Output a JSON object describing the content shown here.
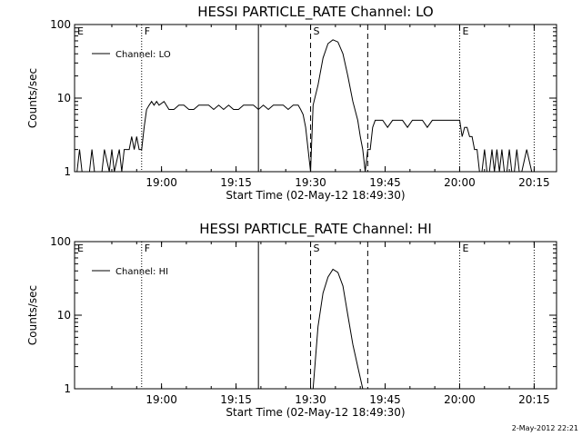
{
  "timestamp": "2-May-2012 22:21",
  "chart_data": [
    {
      "type": "line",
      "title": "HESSI PARTICLE_RATE Channel: LO",
      "xlabel": "Start Time (02-May-12 18:49:30)",
      "ylabel": "Counts/sec",
      "yscale": "log",
      "ylim": [
        1,
        100
      ],
      "xlim_minutes": [
        -7,
        90
      ],
      "xtick_labels": [
        "19:00",
        "19:15",
        "19:30",
        "19:45",
        "20:00",
        "20:15"
      ],
      "ytick_labels": [
        "1",
        "10",
        "100"
      ],
      "legend": {
        "label": "Channel: LO",
        "position": "top-left"
      },
      "markers": [
        {
          "label": "E",
          "t": -7,
          "style": "none"
        },
        {
          "label": "F",
          "t": 6.5,
          "style": "dotted"
        },
        {
          "t": 30,
          "style": "solid"
        },
        {
          "label": "S",
          "t": 40.5,
          "style": "dashed"
        },
        {
          "t": 52,
          "style": "dashed"
        },
        {
          "label": "E",
          "t": 70.5,
          "style": "dotted"
        },
        {
          "t": 85.5,
          "style": "dotted"
        }
      ],
      "series": [
        {
          "x": [
            -6.5,
            -6,
            -5.5,
            -4,
            -3.5,
            -3,
            -2,
            -1.5,
            -1,
            0,
            0.5,
            1,
            2,
            2.5,
            3,
            4,
            4.5,
            5,
            5.5,
            6,
            6.5,
            7,
            7.5,
            8,
            8.5,
            9,
            9.5,
            10,
            11,
            12,
            13,
            14,
            15,
            16,
            17,
            18,
            19,
            20,
            21,
            22,
            23,
            24,
            25,
            26,
            27,
            28,
            29,
            30,
            31,
            32,
            33,
            34,
            35,
            36,
            37,
            38,
            38.5,
            39,
            39.5,
            40,
            40.5,
            41,
            42,
            43,
            44,
            45,
            46,
            47,
            48,
            49,
            50,
            50.5,
            51,
            51.5,
            52,
            52.5,
            53,
            53.5,
            54,
            55,
            56,
            57,
            58,
            59,
            60,
            61,
            62,
            63,
            64,
            65,
            66,
            67,
            68,
            69,
            70,
            70.5,
            71,
            71.5,
            72,
            72.5,
            73,
            73.5,
            74,
            74.5,
            75,
            75.5,
            76,
            76.5,
            77,
            77.5,
            78,
            78.5,
            79,
            79.5,
            80,
            80.5,
            81,
            81.5,
            82,
            82.5,
            83,
            84,
            85,
            86
          ],
          "y": [
            1,
            2,
            1,
            1,
            2,
            1,
            1,
            1,
            2,
            1,
            2,
            1,
            2,
            1,
            2,
            2,
            3,
            2,
            3,
            2,
            2,
            4,
            7,
            8,
            9,
            8,
            9,
            8,
            9,
            7,
            7,
            8,
            8,
            7,
            7,
            8,
            8,
            8,
            7,
            8,
            7,
            8,
            7,
            7,
            8,
            8,
            8,
            7,
            8,
            7,
            8,
            8,
            8,
            7,
            8,
            8,
            7,
            6,
            4,
            2,
            1,
            8,
            15,
            35,
            55,
            62,
            58,
            40,
            20,
            9,
            5,
            3,
            2,
            1,
            2,
            2,
            4,
            5,
            5,
            5,
            4,
            5,
            5,
            5,
            4,
            5,
            5,
            5,
            4,
            5,
            5,
            5,
            5,
            5,
            5,
            5,
            3,
            4,
            4,
            3,
            3,
            2,
            2,
            1,
            1,
            2,
            1,
            1,
            2,
            1,
            2,
            1,
            2,
            1,
            1,
            2,
            1,
            1,
            2,
            1,
            1,
            2,
            1,
            1
          ]
        }
      ]
    },
    {
      "type": "line",
      "title": "HESSI PARTICLE_RATE Channel: HI",
      "xlabel": "Start Time (02-May-12 18:49:30)",
      "ylabel": "Counts/sec",
      "yscale": "log",
      "ylim": [
        1,
        100
      ],
      "xlim_minutes": [
        -7,
        90
      ],
      "xtick_labels": [
        "19:00",
        "19:15",
        "19:30",
        "19:45",
        "20:00",
        "20:15"
      ],
      "ytick_labels": [
        "1",
        "10",
        "100"
      ],
      "legend": {
        "label": "Channel: HI",
        "position": "top-left"
      },
      "markers": [
        {
          "label": "E",
          "t": -7,
          "style": "none"
        },
        {
          "label": "F",
          "t": 6.5,
          "style": "dotted"
        },
        {
          "t": 30,
          "style": "solid"
        },
        {
          "label": "S",
          "t": 40.5,
          "style": "dashed"
        },
        {
          "t": 52,
          "style": "dashed"
        },
        {
          "label": "E",
          "t": 70.5,
          "style": "dotted"
        },
        {
          "t": 85.5,
          "style": "dotted"
        }
      ],
      "series": [
        {
          "x": [
            41,
            42,
            43,
            44,
            45,
            46,
            47,
            48,
            49,
            50,
            51
          ],
          "y": [
            1,
            7,
            20,
            33,
            42,
            38,
            25,
            10,
            4,
            2,
            1
          ]
        }
      ]
    }
  ]
}
